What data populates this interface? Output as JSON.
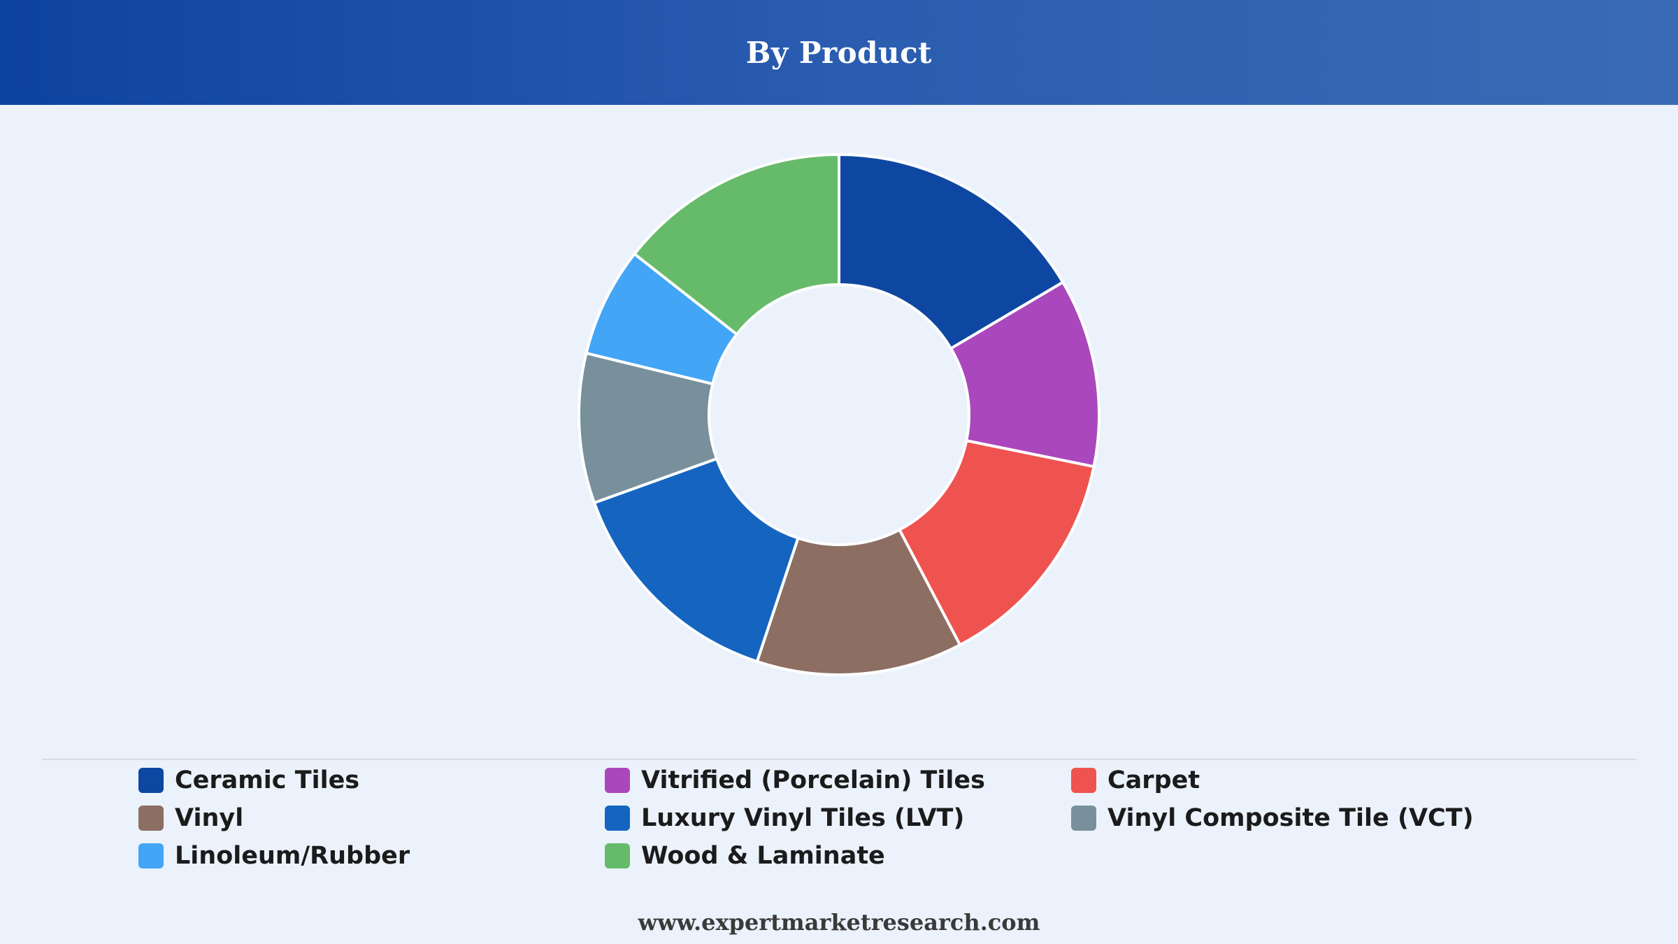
{
  "header": {
    "title": "By Product"
  },
  "footer": {
    "text": "www.expertmarketresearch.com"
  },
  "chart_data": {
    "type": "pie",
    "variant": "donut",
    "title": "By Product",
    "legend_position": "bottom",
    "categories": [
      "Ceramic Tiles",
      "Vitrified (Porcelain) Tiles",
      "Carpet",
      "Vinyl",
      "Luxury Vinyl Tiles (LVT)",
      "Vinyl Composite Tile (VCT)",
      "Linoleum/Rubber",
      "Wood & Laminate"
    ],
    "values": [
      16.5,
      11.7,
      14.1,
      12.8,
      14.4,
      9.3,
      6.8,
      14.4
    ],
    "colors": [
      "#0d47a1",
      "#ab47bc",
      "#ef5350",
      "#8d6e63",
      "#1565c0",
      "#78909c",
      "#42a5f5",
      "#66bb6a"
    ],
    "slice_order": [
      0,
      1,
      2,
      3,
      4,
      5,
      6,
      7
    ]
  }
}
